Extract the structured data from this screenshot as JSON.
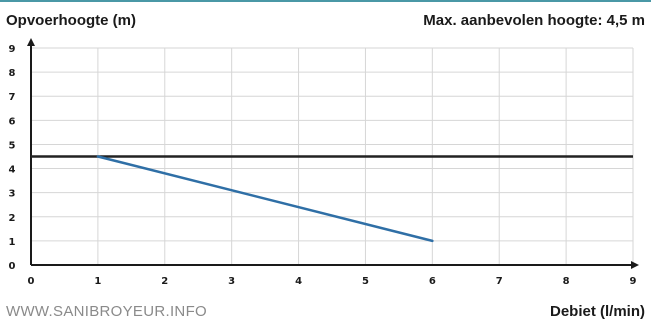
{
  "header": {
    "left_title": "Opvoerhoogte (m)",
    "right_title": "Max. aanbevolen hoogte: 4,5 m"
  },
  "footer": {
    "source": "WWW.SANIBROYEUR.INFO",
    "x_axis_title": "Debiet (l/min)"
  },
  "colors": {
    "accent_rule": "#4a98a6",
    "curve": "#2f6fa6",
    "max_line": "#222222",
    "grid": "#d6d6d6",
    "axis": "#1a1a1a"
  },
  "chart_data": {
    "type": "line",
    "title": "",
    "xlabel": "Debiet (l/min)",
    "ylabel": "Opvoerhoogte (m)",
    "xlim": [
      0,
      9
    ],
    "ylim": [
      0,
      9
    ],
    "x_ticks": [
      "0",
      "1",
      "2",
      "3",
      "4",
      "5",
      "6",
      "7",
      "8",
      "9"
    ],
    "y_ticks": [
      "0",
      "1",
      "2",
      "3",
      "4",
      "5",
      "6",
      "7",
      "8",
      "9"
    ],
    "grid": true,
    "series": [
      {
        "x": [
          1,
          6
        ],
        "y": [
          4.5,
          1
        ]
      }
    ],
    "reference_lines": [
      {
        "y": 4.5
      }
    ]
  }
}
